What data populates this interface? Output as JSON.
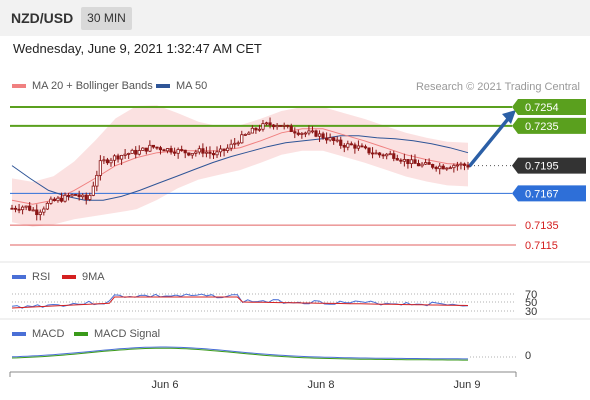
{
  "header": {
    "symbol": "NZD/USD",
    "timeframe": "30 MIN",
    "datetime": "Wednesday, June 9, 2021 1:32:47 AM CET"
  },
  "price_panel": {
    "legend": [
      {
        "label": "MA 20 + Bollinger Bands",
        "color": "#f08080"
      },
      {
        "label": "MA 50",
        "color": "#2f5597"
      }
    ],
    "copyright": "Research © 2021 Trading Central"
  },
  "rsi_panel": {
    "legend": [
      {
        "label": "RSI",
        "color": "#4a6fd6"
      },
      {
        "label": "9MA",
        "color": "#d42020"
      }
    ],
    "levels": [
      "70",
      "50",
      "30"
    ]
  },
  "macd_panel": {
    "legend": [
      {
        "label": "MACD",
        "color": "#4a6fd6"
      },
      {
        "label": "MACD Signal",
        "color": "#3a9a1a"
      }
    ],
    "zero_label": "0"
  },
  "colors": {
    "resistance": "#5aa01e",
    "support": "#2e6fd8",
    "target_low": "#e06060",
    "current_bg": "#333333",
    "candle": "#8a1414",
    "arrow": "#2b5fa6",
    "bollinger": "#fadada"
  },
  "chart_data": {
    "type": "candlestick",
    "instrument": "NZD/USD",
    "timeframe": "30 MIN",
    "x_ticks": [
      "Jun 6",
      "Jun 8",
      "Jun 9"
    ],
    "levels": [
      {
        "value": 0.7254,
        "label": "0.7254",
        "type": "resistance"
      },
      {
        "value": 0.7235,
        "label": "0.7235",
        "type": "resistance"
      },
      {
        "value": 0.7195,
        "label": "0.7195",
        "type": "current"
      },
      {
        "value": 0.7167,
        "label": "0.7167",
        "type": "pivot"
      },
      {
        "value": 0.7135,
        "label": "0.7135",
        "type": "support"
      },
      {
        "value": 0.7115,
        "label": "0.7115",
        "type": "support"
      }
    ],
    "price_series": [
      0.7152,
      0.7154,
      0.7148,
      0.7158,
      0.7162,
      0.7166,
      0.716,
      0.7198,
      0.7203,
      0.7207,
      0.7209,
      0.7214,
      0.7212,
      0.721,
      0.7208,
      0.721,
      0.7206,
      0.7212,
      0.7222,
      0.723,
      0.7236,
      0.7237,
      0.7231,
      0.7228,
      0.7227,
      0.7222,
      0.7216,
      0.7215,
      0.721,
      0.7206,
      0.7206,
      0.72,
      0.7196,
      0.7195,
      0.7194,
      0.7196,
      0.7195
    ],
    "ma50_series": [
      0.7195,
      0.7182,
      0.717,
      0.7164,
      0.716,
      0.716,
      0.7164,
      0.717,
      0.7177,
      0.7184,
      0.7191,
      0.7198,
      0.7204,
      0.7209,
      0.7214,
      0.7218,
      0.722,
      0.7222,
      0.7225,
      0.7225,
      0.7223,
      0.7222,
      0.722,
      0.7217,
      0.7213,
      0.7208
    ],
    "ma20_series": [
      0.716,
      0.7156,
      0.716,
      0.717,
      0.7182,
      0.7195,
      0.7203,
      0.7208,
      0.721,
      0.721,
      0.721,
      0.7213,
      0.722,
      0.7228,
      0.7232,
      0.7232,
      0.7226,
      0.722,
      0.7213,
      0.7206,
      0.7201,
      0.7197,
      0.7196
    ],
    "projection": {
      "from": 0.7195,
      "to": 0.7254
    },
    "rsi": {
      "levels": [
        70,
        50,
        30
      ]
    },
    "macd": {
      "zero": 0
    }
  }
}
